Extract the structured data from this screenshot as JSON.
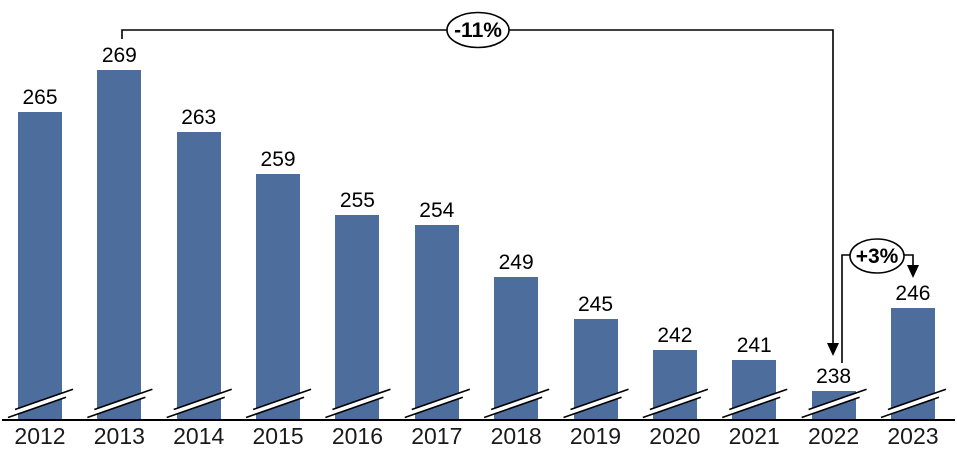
{
  "chart_data": {
    "type": "bar",
    "title": "",
    "xlabel": "",
    "ylabel": "",
    "categories": [
      "2012",
      "2013",
      "2014",
      "2015",
      "2016",
      "2017",
      "2018",
      "2019",
      "2020",
      "2021",
      "2022",
      "2023"
    ],
    "values": [
      265,
      269,
      263,
      259,
      255,
      254,
      249,
      245,
      242,
      241,
      238,
      246
    ],
    "ylim": [
      235,
      272
    ],
    "grid": false,
    "legend": "none",
    "bar_color": "#4D6D9D",
    "axis_color": "#000000",
    "broken_y_axis": true,
    "value_labels_shown": true,
    "annotations": [
      {
        "label": "-11%",
        "from_category": "2013",
        "to_category": "2022",
        "style": "oval-on-bracket-with-down-arrow"
      },
      {
        "label": "+3%",
        "from_category": "2022",
        "to_category": "2023",
        "style": "oval-on-bracket-with-down-arrow"
      }
    ]
  }
}
